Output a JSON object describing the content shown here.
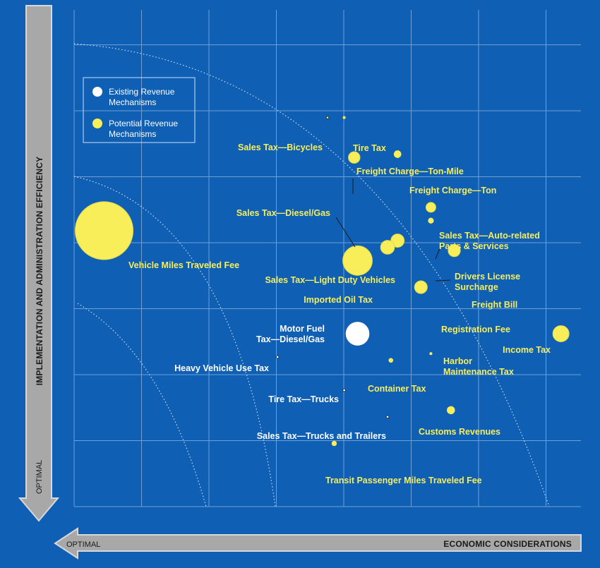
{
  "chart_data": {
    "type": "bubble",
    "axes": {
      "x": {
        "label": "ECONOMIC CONSIDERATIONS",
        "optimal_label": "OPTIMAL",
        "optimal_end": "left"
      },
      "y": {
        "label": "IMPLEMENTATION AND ADMINISTRATION EFFICIENCY",
        "optimal_label": "OPTIMAL",
        "optimal_end": "bottom"
      }
    },
    "grid": true,
    "legend": {
      "placement": "top-left",
      "entries": [
        {
          "key": "existing",
          "label_lines": [
            "Existing Revenue",
            "Mechanisms"
          ],
          "color": "#ffffff"
        },
        {
          "key": "potential",
          "label_lines": [
            "Potential Revenue",
            "Mechanisms"
          ],
          "color": "#f7ee5a"
        }
      ]
    },
    "colors": {
      "background": "#0f5fb5",
      "grid": "#6f9fd6",
      "potential": "#f7ee5a",
      "existing": "#ffffff",
      "axis_bar": "#a8a8a8"
    },
    "points": [
      {
        "label_lines": [
          "Vehicle Miles Traveled Fee"
        ],
        "group": "potential",
        "x": 0.45,
        "y": 4.15,
        "size": 1.0
      },
      {
        "label_lines": [
          "Sales Tax—Diesel/Gas"
        ],
        "group": "potential",
        "x": 4.25,
        "y": 3.7,
        "size": 0.51
      },
      {
        "label_lines": [
          "Motor Fuel",
          "Tax—Diesel/Gas"
        ],
        "group": "existing",
        "x": 4.25,
        "y": 2.6,
        "size": 0.41
      },
      {
        "label_lines": [
          "Income Tax"
        ],
        "group": "potential",
        "x": 7.3,
        "y": 2.6,
        "size": 0.28
      },
      {
        "label_lines": [
          "Sales Tax—Light Duty Vehicles"
        ],
        "group": "potential",
        "x": 4.85,
        "y": 4.0,
        "size": 0.23
      },
      {
        "label_lines": [
          "Imported Oil Tax"
        ],
        "group": "potential",
        "x": 4.7,
        "y": 3.9,
        "size": 0.24
      },
      {
        "label_lines": [
          "Registration Fee"
        ],
        "group": "potential",
        "x": 5.2,
        "y": 3.3,
        "size": 0.22
      },
      {
        "label_lines": [
          "Freight Bill"
        ],
        "group": "potential",
        "x": 5.7,
        "y": 3.85,
        "size": 0.21
      },
      {
        "label_lines": [
          "Freight Charge—Ton-Mile"
        ],
        "group": "potential",
        "x": 4.2,
        "y": 5.25,
        "size": 0.2
      },
      {
        "label_lines": [
          "Sales Tax—Auto-related",
          "Parts & Services"
        ],
        "group": "potential",
        "x": 5.35,
        "y": 4.5,
        "size": 0.17
      },
      {
        "label_lines": [
          "Customs Revenues"
        ],
        "group": "potential",
        "x": 5.65,
        "y": 1.45,
        "size": 0.14
      },
      {
        "label_lines": [
          "Freight Charge—Ton"
        ],
        "group": "potential",
        "x": 4.85,
        "y": 5.3,
        "size": 0.13
      },
      {
        "label_lines": [
          "Drivers License",
          "Surcharge"
        ],
        "group": "potential",
        "x": 5.35,
        "y": 4.3,
        "size": 0.1
      },
      {
        "label_lines": [
          "Transit Passenger Miles Traveled Fee"
        ],
        "group": "potential",
        "x": 3.9,
        "y": 0.95,
        "size": 0.09
      },
      {
        "label_lines": [
          "Container Tax"
        ],
        "group": "potential",
        "x": 4.75,
        "y": 2.2,
        "size": 0.08
      },
      {
        "label_lines": [
          "Harbor",
          "Maintenance Tax"
        ],
        "group": "potential",
        "x": 5.35,
        "y": 2.3,
        "size": 0.05
      },
      {
        "label_lines": [
          "Tire Tax"
        ],
        "group": "potential",
        "x": 4.05,
        "y": 5.85,
        "size": 0.05
      },
      {
        "label_lines": [
          "Sales Tax—Bicycles"
        ],
        "group": "potential",
        "x": 3.8,
        "y": 5.85,
        "size": 0.03
      },
      {
        "label_lines": [
          "Heavy Vehicle Use Tax"
        ],
        "group": "existing",
        "x": 3.05,
        "y": 2.25,
        "size": 0.02
      },
      {
        "label_lines": [
          "Tire Tax—Trucks"
        ],
        "group": "existing",
        "x": 4.05,
        "y": 1.75,
        "size": 0.02
      },
      {
        "label_lines": [
          "Sales Tax—Trucks and Trailers"
        ],
        "group": "existing",
        "x": 4.7,
        "y": 1.35,
        "size": 0.02
      }
    ]
  }
}
